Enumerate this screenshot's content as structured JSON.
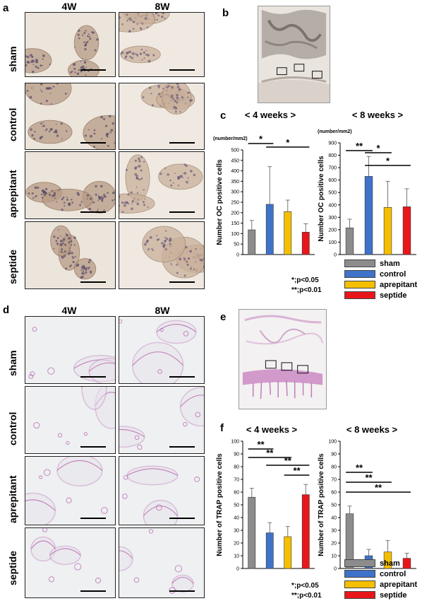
{
  "panels": {
    "a": "a",
    "b": "b",
    "c": "c",
    "d": "d",
    "e": "e",
    "f": "f"
  },
  "columns": [
    "4W",
    "8W"
  ],
  "rows": [
    "sham",
    "control",
    "aprepitant",
    "septide"
  ],
  "colors": {
    "sham": "#8c8c8c",
    "control": "#3f73c9",
    "aprepitant": "#f5bf00",
    "septide": "#e8161a"
  },
  "legend": [
    "sham",
    "control",
    "aprepitant",
    "septide"
  ],
  "significance": [
    "*;p<0.05",
    "**;p<0.01"
  ],
  "chart_data": [
    {
      "type": "bar",
      "panel": "c",
      "title": "< 4 weeks >",
      "unit": "(number/mm2)",
      "ylabel": "Number OC positive cells",
      "categories": [
        "sham",
        "control",
        "aprepitant",
        "septide"
      ],
      "values": [
        118,
        240,
        205,
        107
      ],
      "errors": [
        45,
        180,
        55,
        40
      ],
      "ylim": [
        0,
        500
      ],
      "yticks": [
        0,
        50,
        100,
        150,
        200,
        250,
        300,
        350,
        400,
        450,
        500
      ],
      "brackets": [
        {
          "from": 0,
          "to": 1,
          "label": "*"
        },
        {
          "from": 1,
          "to": 3,
          "label": "*"
        }
      ]
    },
    {
      "type": "bar",
      "panel": "c",
      "title": "< 8 weeks >",
      "unit": "(number/mm2)",
      "ylabel": "Number OC positive cells",
      "categories": [
        "sham",
        "control",
        "aprepitant",
        "septide"
      ],
      "values": [
        215,
        630,
        380,
        385
      ],
      "errors": [
        70,
        160,
        210,
        145
      ],
      "ylim": [
        0,
        900
      ],
      "yticks": [
        0,
        100,
        200,
        300,
        400,
        500,
        600,
        700,
        800,
        900
      ],
      "brackets": [
        {
          "from": 0,
          "to": 1,
          "label": "**"
        },
        {
          "from": 1,
          "to": 2,
          "label": "*"
        },
        {
          "from": 1,
          "to": 3,
          "label": "*"
        }
      ]
    },
    {
      "type": "bar",
      "panel": "f",
      "title": "< 4 weeks >",
      "unit": "",
      "ylabel": "Number of TRAP positive cells",
      "categories": [
        "sham",
        "control",
        "aprepitant",
        "septide"
      ],
      "values": [
        56,
        28,
        25,
        58
      ],
      "errors": [
        7,
        8,
        8,
        8
      ],
      "ylim": [
        0,
        100
      ],
      "yticks": [
        0,
        10,
        20,
        30,
        40,
        50,
        60,
        70,
        80,
        90,
        100
      ],
      "brackets": [
        {
          "from": 0,
          "to": 1,
          "label": "**"
        },
        {
          "from": 0,
          "to": 2,
          "label": "**"
        },
        {
          "from": 1,
          "to": 3,
          "label": "**"
        },
        {
          "from": 2,
          "to": 3,
          "label": "**"
        }
      ]
    },
    {
      "type": "bar",
      "panel": "f",
      "title": "< 8 weeks >",
      "unit": "",
      "ylabel": "Number of TRAP positive cells",
      "categories": [
        "sham",
        "control",
        "aprepitant",
        "septide"
      ],
      "values": [
        43,
        10,
        13,
        8
      ],
      "errors": [
        6,
        5,
        9,
        4
      ],
      "ylim": [
        0,
        100
      ],
      "yticks": [
        0,
        10,
        20,
        30,
        40,
        50,
        60,
        70,
        80,
        90,
        100
      ],
      "brackets": [
        {
          "from": 0,
          "to": 1,
          "label": "**"
        },
        {
          "from": 0,
          "to": 2,
          "label": "**"
        },
        {
          "from": 0,
          "to": 3,
          "label": "**"
        }
      ]
    }
  ]
}
